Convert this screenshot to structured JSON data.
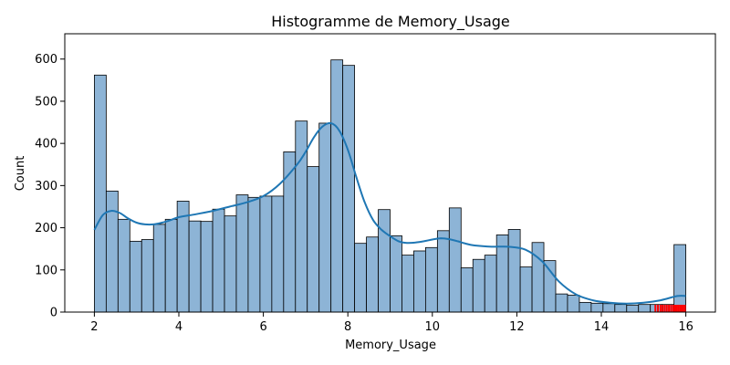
{
  "chart_data": {
    "type": "bar",
    "title": "Histogramme de Memory_Usage",
    "xlabel": "Memory_Usage",
    "ylabel": "Count",
    "xlim": [
      1.3,
      16.7
    ],
    "ylim": [
      0,
      660
    ],
    "xticks": [
      2,
      4,
      6,
      8,
      10,
      12,
      14,
      16
    ],
    "yticks": [
      0,
      100,
      200,
      300,
      400,
      500,
      600
    ],
    "grid": false,
    "bin_start": 2,
    "bin_width": 0.28,
    "counts": [
      562,
      287,
      220,
      168,
      172,
      208,
      220,
      263,
      216,
      215,
      244,
      228,
      278,
      272,
      275,
      275,
      380,
      453,
      345,
      448,
      598,
      585,
      163,
      178,
      243,
      181,
      135,
      145,
      153,
      193,
      247,
      105,
      125,
      135,
      183,
      196,
      107,
      165,
      122,
      43,
      40,
      23,
      21,
      20,
      18,
      16,
      18,
      18,
      18,
      160
    ],
    "kde": {
      "x": [
        2.0,
        2.2,
        2.4,
        2.6,
        2.8,
        3.0,
        3.2,
        3.4,
        3.6,
        3.8,
        4.0,
        4.4,
        4.8,
        5.2,
        5.6,
        6.0,
        6.4,
        6.8,
        7.0,
        7.2,
        7.4,
        7.6,
        7.8,
        8.0,
        8.2,
        8.4,
        8.6,
        8.8,
        9.0,
        9.2,
        9.4,
        9.6,
        9.8,
        10.0,
        10.2,
        10.4,
        10.6,
        10.8,
        11.0,
        11.4,
        11.8,
        12.2,
        12.6,
        13.0,
        13.4,
        13.8,
        14.2,
        14.6,
        15.0,
        15.4,
        15.8,
        16.0
      ],
      "y": [
        195,
        230,
        240,
        235,
        222,
        212,
        208,
        208,
        212,
        218,
        225,
        232,
        240,
        250,
        260,
        275,
        305,
        350,
        380,
        415,
        440,
        448,
        430,
        385,
        320,
        260,
        218,
        195,
        180,
        168,
        164,
        165,
        168,
        172,
        175,
        173,
        168,
        162,
        158,
        155,
        155,
        148,
        120,
        72,
        42,
        28,
        22,
        20,
        22,
        28,
        38,
        38
      ]
    },
    "series_color": "#1f77b4",
    "bar_fill": "#8db4d6",
    "rug": {
      "color": "#ff0000",
      "x": [
        15.28,
        15.34,
        15.4,
        15.45,
        15.5,
        15.55,
        15.6,
        15.65,
        15.7,
        15.74,
        15.78,
        15.82,
        15.86,
        15.9,
        15.94,
        15.98
      ]
    }
  }
}
